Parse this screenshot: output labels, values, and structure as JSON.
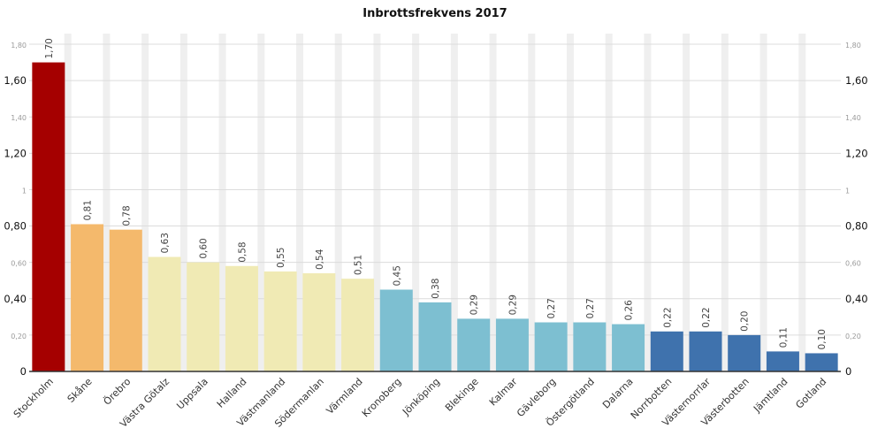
{
  "chart_data": {
    "type": "bar",
    "title": "Inbrottsfrekvens 2017",
    "xlabel": "",
    "ylabel": "",
    "ylim": [
      0,
      1.8
    ],
    "grid": true,
    "y_ticks": [
      "0",
      "0,20",
      "0,40",
      "0,60",
      "0,80",
      "1",
      "1,20",
      "1,40",
      "1,60",
      "1,80"
    ],
    "y_tick_values": [
      0,
      0.2,
      0.4,
      0.6,
      0.8,
      1.0,
      1.2,
      1.4,
      1.6,
      1.8
    ],
    "y_tick_emphasis": [
      "major",
      "minor",
      "major",
      "minor",
      "major",
      "minor",
      "major",
      "minor",
      "major",
      "minor"
    ],
    "categories": [
      "Stockholm",
      "Skåne",
      "Örebro",
      "Västra Götalz",
      "Uppsala",
      "Halland",
      "Västmanland",
      "Södermanlan",
      "Värmland",
      "Kronoberg",
      "Jönköping",
      "Blekinge",
      "Kalmar",
      "Gävleborg",
      "Östergötland",
      "Dalarna",
      "Norrbotten",
      "Västernorrlar",
      "Västerbotten",
      "Jämtland",
      "Gotland"
    ],
    "values": [
      1.7,
      0.81,
      0.78,
      0.63,
      0.6,
      0.58,
      0.55,
      0.54,
      0.51,
      0.45,
      0.38,
      0.29,
      0.29,
      0.27,
      0.27,
      0.26,
      0.22,
      0.22,
      0.2,
      0.11,
      0.1
    ],
    "value_labels": [
      "1,70",
      "0,81",
      "0,78",
      "0,63",
      "0,60",
      "0,58",
      "0,55",
      "0,54",
      "0,51",
      "0,45",
      "0,38",
      "0,29",
      "0,29",
      "0,27",
      "0,27",
      "0,26",
      "0,22",
      "0,22",
      "0,20",
      "0,11",
      "0,10"
    ],
    "bar_colors": [
      "#a50000",
      "#f4b96c",
      "#f4b96c",
      "#f0eab4",
      "#f0eab4",
      "#f0eab4",
      "#f0eab4",
      "#f0eab4",
      "#f0eab4",
      "#7dbfd1",
      "#7dbfd1",
      "#7dbfd1",
      "#7dbfd1",
      "#7dbfd1",
      "#7dbfd1",
      "#7dbfd1",
      "#3f72ad",
      "#3f72ad",
      "#3f72ad",
      "#3f72ad",
      "#3f72ad"
    ],
    "colors": {
      "band": "#efefef",
      "gridline": "#dcdcdc",
      "axis": "#333333"
    }
  }
}
